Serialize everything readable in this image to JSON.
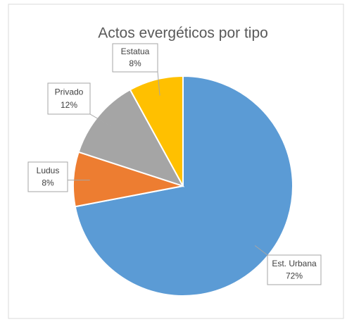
{
  "chart_data": {
    "type": "pie",
    "title": "Actos evergéticos por tipo",
    "categories": [
      "Est. Urbana",
      "Ludus",
      "Privado",
      "Estatua"
    ],
    "values": [
      72,
      8,
      12,
      8
    ],
    "value_labels": [
      "72%",
      "8%",
      "12%",
      "8%"
    ],
    "colors": [
      "#5b9bd5",
      "#ed7d31",
      "#a5a5a5",
      "#ffc000"
    ]
  }
}
